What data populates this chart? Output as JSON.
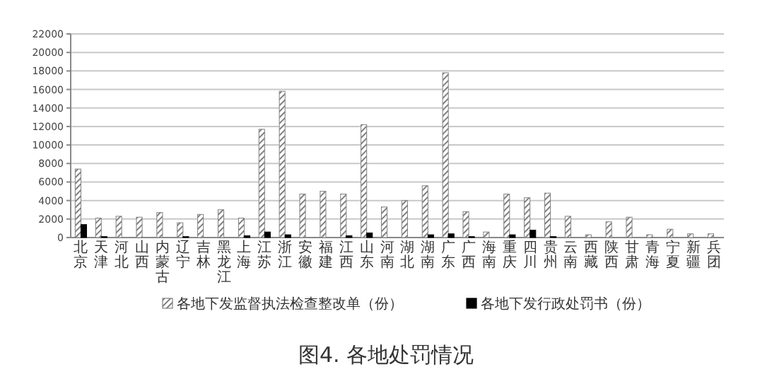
{
  "chart_data": {
    "type": "bar",
    "title": "图4. 各地处罚情况",
    "categories": [
      "北京",
      "天津",
      "河北",
      "山西",
      "内蒙古",
      "辽宁",
      "吉林",
      "黑龙江",
      "上海",
      "江苏",
      "浙江",
      "安徽",
      "福建",
      "江西",
      "山东",
      "河南",
      "湖北",
      "湖南",
      "广东",
      "广西",
      "海南",
      "重庆",
      "四川",
      "贵州",
      "云南",
      "西藏",
      "陕西",
      "甘肃",
      "青海",
      "宁夏",
      "新疆",
      "兵团"
    ],
    "series": [
      {
        "name": "各地下发监督执法检查整改单（份）",
        "color": "#808080",
        "values": [
          7400,
          2100,
          2300,
          2200,
          2700,
          1600,
          2500,
          3000,
          2100,
          11700,
          15800,
          4700,
          5000,
          4700,
          12200,
          3300,
          4000,
          5600,
          17800,
          2800,
          600,
          4700,
          4300,
          4800,
          2300,
          300,
          1700,
          2200,
          300,
          900,
          400,
          400
        ]
      },
      {
        "name": "各地下发行政处罚书（份）",
        "color": "#000000",
        "values": [
          1400,
          100,
          0,
          0,
          0,
          100,
          0,
          0,
          200,
          600,
          300,
          0,
          0,
          200,
          500,
          0,
          0,
          300,
          400,
          100,
          0,
          300,
          800,
          100,
          0,
          0,
          0,
          0,
          0,
          0,
          0,
          0
        ]
      }
    ],
    "ylim": [
      0,
      22000
    ],
    "yticks": [
      0,
      2000,
      4000,
      6000,
      8000,
      10000,
      12000,
      14000,
      16000,
      18000,
      20000,
      22000
    ],
    "grid": "y",
    "legend": "bottom"
  }
}
